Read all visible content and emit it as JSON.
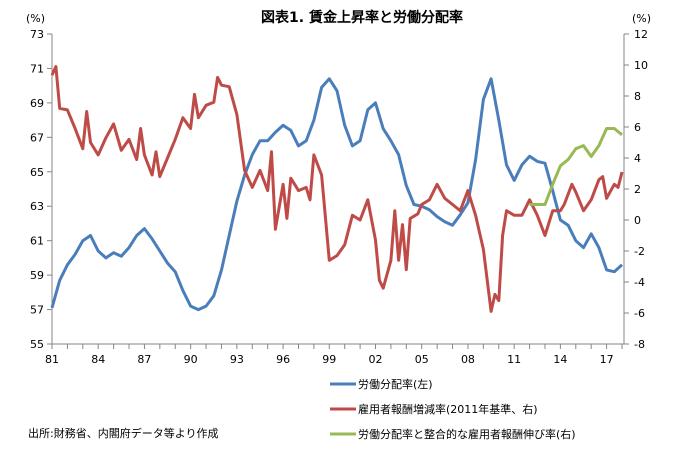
{
  "chart_data": {
    "type": "line",
    "title": "図表1. 賃金上昇率と労働分配率",
    "left_unit": "(%)",
    "right_unit": "(%)",
    "left_ylim": [
      55,
      73
    ],
    "left_ticks": [
      55,
      57,
      59,
      61,
      63,
      65,
      67,
      69,
      71,
      73
    ],
    "right_ylim": [
      -8,
      12
    ],
    "right_ticks": [
      -8,
      -6,
      -4,
      -2,
      0,
      2,
      4,
      6,
      8,
      10,
      12
    ],
    "xlim": [
      1981,
      2018
    ],
    "x_tick_labels": [
      "81",
      "84",
      "87",
      "90",
      "93",
      "96",
      "99",
      "02",
      "05",
      "08",
      "11",
      "14",
      "17"
    ],
    "x_tick_label_years": [
      1981,
      1984,
      1987,
      1990,
      1993,
      1996,
      1999,
      2002,
      2005,
      2008,
      2011,
      2014,
      2017
    ],
    "grid": false,
    "legend_position": "bottom-right",
    "source": "出所:財務省、内閣府データ等より作成",
    "series": [
      {
        "name": "労働分配率(左)",
        "axis": "left",
        "color": "#4a7ebb",
        "x": [
          1981,
          1981.5,
          1982,
          1982.5,
          1983,
          1983.5,
          1984,
          1984.5,
          1985,
          1985.5,
          1986,
          1986.5,
          1987,
          1987.5,
          1988,
          1988.5,
          1989,
          1989.5,
          1990,
          1990.5,
          1991,
          1991.5,
          1992,
          1992.5,
          1993,
          1993.5,
          1994,
          1994.5,
          1995,
          1995.5,
          1996,
          1996.5,
          1997,
          1997.5,
          1998,
          1998.5,
          1999,
          1999.5,
          2000,
          2000.5,
          2001,
          2001.5,
          2002,
          2002.5,
          2003,
          2003.5,
          2004,
          2004.5,
          2005,
          2005.5,
          2006,
          2006.5,
          2007,
          2007.5,
          2008,
          2008.5,
          2009,
          2009.5,
          2010,
          2010.5,
          2011,
          2011.5,
          2012,
          2012.5,
          2013,
          2013.5,
          2014,
          2014.5,
          2015,
          2015.5,
          2016,
          2016.5,
          2017,
          2017.5,
          2018
        ],
        "values": [
          57.1,
          58.7,
          59.6,
          60.2,
          61.0,
          61.3,
          60.4,
          60.0,
          60.3,
          60.1,
          60.6,
          61.3,
          61.7,
          61.1,
          60.4,
          59.7,
          59.2,
          58.1,
          57.2,
          57.0,
          57.2,
          57.8,
          59.3,
          61.3,
          63.3,
          64.8,
          66.0,
          66.8,
          66.8,
          67.3,
          67.7,
          67.4,
          66.5,
          66.8,
          68.0,
          69.9,
          70.4,
          69.7,
          67.7,
          66.5,
          66.8,
          68.6,
          69.0,
          67.5,
          66.8,
          66.0,
          64.2,
          63.1,
          63.0,
          62.8,
          62.4,
          62.1,
          61.9,
          62.5,
          63.2,
          65.7,
          69.2,
          70.4,
          68.0,
          65.4,
          64.5,
          65.4,
          65.9,
          65.6,
          65.5,
          63.9,
          62.2,
          61.9,
          61.0,
          60.6,
          61.4,
          60.6,
          59.3,
          59.2,
          59.6
        ]
      },
      {
        "name": "雇用者報酬増減率(2011年基準、右)",
        "axis": "right",
        "color": "#be4b48",
        "x": [
          1981,
          1981.25,
          1981.5,
          1982,
          1982.5,
          1983,
          1983.25,
          1983.5,
          1984,
          1984.5,
          1985,
          1985.5,
          1986,
          1986.5,
          1986.75,
          1987,
          1987.5,
          1987.75,
          1988,
          1988.5,
          1989,
          1989.5,
          1990,
          1990.25,
          1990.5,
          1991,
          1991.5,
          1991.75,
          1992,
          1992.5,
          1993,
          1993.5,
          1994,
          1994.5,
          1995,
          1995.25,
          1995.5,
          1996,
          1996.25,
          1996.5,
          1997,
          1997.5,
          1997.75,
          1998,
          1998.5,
          1999,
          1999.5,
          2000,
          2000.5,
          2001,
          2001.5,
          2002,
          2002.25,
          2002.5,
          2003,
          2003.25,
          2003.5,
          2003.75,
          2004,
          2004.25,
          2004.75,
          2005,
          2005.5,
          2006,
          2006.5,
          2007,
          2007.5,
          2008,
          2008.5,
          2009,
          2009.5,
          2009.75,
          2010,
          2010.25,
          2010.5,
          2011,
          2011.5,
          2012,
          2012.5,
          2013,
          2013.5,
          2014,
          2014.25,
          2014.75,
          2015,
          2015.5,
          2016,
          2016.5,
          2016.75,
          2017,
          2017.5,
          2017.75,
          2018
        ],
        "values": [
          9.35,
          9.9,
          7.2,
          7.1,
          5.9,
          4.6,
          7.0,
          5.0,
          4.2,
          5.3,
          6.2,
          4.5,
          5.2,
          3.9,
          5.9,
          4.2,
          2.9,
          4.4,
          2.8,
          4.0,
          5.2,
          6.6,
          5.9,
          8.1,
          6.6,
          7.4,
          7.6,
          9.2,
          8.7,
          8.6,
          6.8,
          3.2,
          2.1,
          3.2,
          1.9,
          4.4,
          -0.6,
          2.3,
          0.1,
          2.7,
          1.9,
          2.1,
          1.3,
          4.2,
          2.9,
          -2.6,
          -2.3,
          -1.6,
          0.3,
          0.0,
          1.3,
          -1.3,
          -3.9,
          -4.4,
          -2.6,
          0.6,
          -2.6,
          -0.3,
          -3.2,
          0.1,
          0.4,
          1.0,
          1.3,
          2.3,
          1.4,
          1.0,
          0.6,
          1.9,
          0.3,
          -1.9,
          -5.9,
          -4.8,
          -5.2,
          -1.0,
          0.6,
          0.3,
          0.3,
          1.3,
          0.3,
          -1.0,
          0.6,
          0.6,
          1.0,
          2.3,
          1.8,
          0.6,
          1.3,
          2.6,
          2.8,
          1.4,
          2.3,
          2.1,
          3.1
        ]
      },
      {
        "name": "労働分配率と整合的な雇用者報酬伸び率(右)",
        "axis": "right",
        "color": "#98b954",
        "x": [
          2012,
          2013,
          2013.5,
          2014,
          2014.5,
          2015,
          2015.5,
          2016,
          2016.5,
          2017,
          2017.5,
          2018
        ],
        "values": [
          1.0,
          1.0,
          2.3,
          3.5,
          3.9,
          4.6,
          4.8,
          4.1,
          4.8,
          5.9,
          5.9,
          5.5
        ]
      }
    ]
  }
}
